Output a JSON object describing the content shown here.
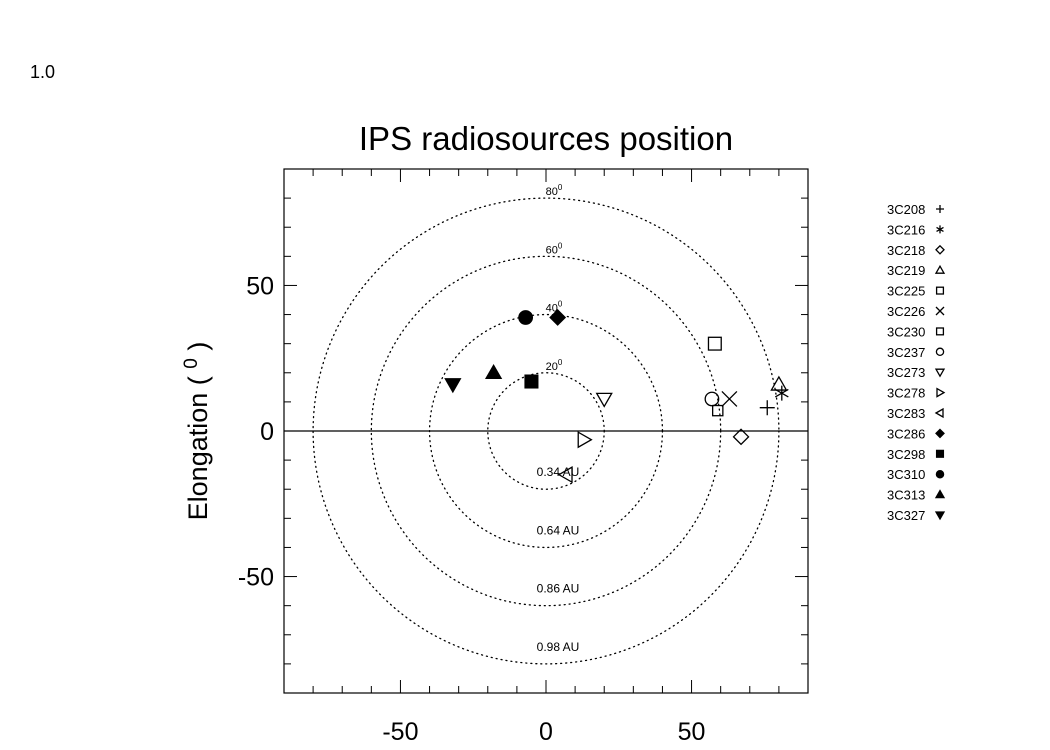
{
  "corner_label": "1.0",
  "chart_data": {
    "type": "scatter",
    "title": "IPS radiosources position",
    "xlabel": "",
    "ylabel": "Elongation ( ⁰ )",
    "xlim": [
      -90,
      90
    ],
    "ylim": [
      -90,
      90
    ],
    "x_ticks": [
      -50,
      0,
      50
    ],
    "y_ticks": [
      -50,
      0,
      50
    ],
    "grid": false,
    "circles": [
      {
        "radius": 20,
        "angle_label": "20",
        "distance_label": "0.34 AU"
      },
      {
        "radius": 40,
        "angle_label": "40",
        "distance_label": "0.64 AU"
      },
      {
        "radius": 60,
        "angle_label": "60",
        "distance_label": "0.86 AU"
      },
      {
        "radius": 80,
        "angle_label": "80",
        "distance_label": "0.98 AU"
      }
    ],
    "legend_position": "right",
    "series": [
      {
        "name": "3C208",
        "marker": "plus",
        "filled": false,
        "x": 76,
        "y": 8
      },
      {
        "name": "3C216",
        "marker": "asterisk",
        "filled": false,
        "x": 81,
        "y": 13
      },
      {
        "name": "3C218",
        "marker": "diamond",
        "filled": false,
        "x": 67,
        "y": -2
      },
      {
        "name": "3C219",
        "marker": "triangle-up",
        "filled": false,
        "x": 80,
        "y": 16
      },
      {
        "name": "3C225",
        "marker": "square",
        "filled": false,
        "x": 58,
        "y": 30
      },
      {
        "name": "3C226",
        "marker": "cross",
        "filled": false,
        "x": 63,
        "y": 11
      },
      {
        "name": "3C230",
        "marker": "square-small",
        "filled": false,
        "x": 59,
        "y": 7
      },
      {
        "name": "3C237",
        "marker": "circle",
        "filled": false,
        "x": 57,
        "y": 11
      },
      {
        "name": "3C273",
        "marker": "triangle-down",
        "filled": false,
        "x": 20,
        "y": 11
      },
      {
        "name": "3C278",
        "marker": "triangle-right",
        "filled": false,
        "x": 13,
        "y": -3
      },
      {
        "name": "3C283",
        "marker": "triangle-left",
        "filled": false,
        "x": 7,
        "y": -15
      },
      {
        "name": "3C286",
        "marker": "diamond",
        "filled": true,
        "x": 4,
        "y": 39
      },
      {
        "name": "3C298",
        "marker": "square",
        "filled": true,
        "x": -5,
        "y": 17
      },
      {
        "name": "3C310",
        "marker": "circle",
        "filled": true,
        "x": -7,
        "y": 39
      },
      {
        "name": "3C313",
        "marker": "triangle-up",
        "filled": true,
        "x": -18,
        "y": 20
      },
      {
        "name": "3C327",
        "marker": "triangle-down",
        "filled": true,
        "x": -32,
        "y": 16
      }
    ]
  }
}
